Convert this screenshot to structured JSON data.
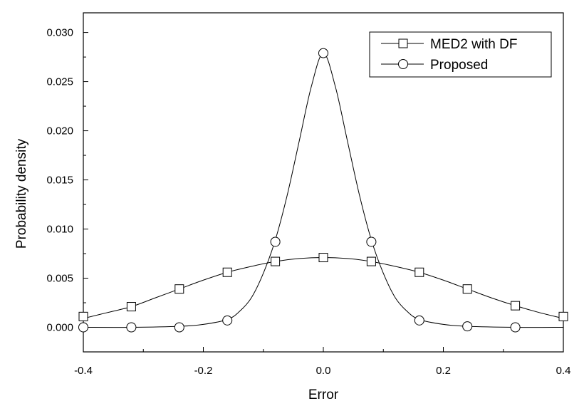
{
  "chart_data": {
    "type": "line",
    "title": "",
    "xlabel": "Error",
    "ylabel": "Probability density",
    "xlim": [
      -0.4,
      0.4
    ],
    "ylim": [
      -0.0025,
      0.032
    ],
    "x_ticks": [
      -0.4,
      -0.2,
      0.0,
      0.2,
      0.4
    ],
    "x_tick_labels": [
      "-0.4",
      "-0.2",
      "0.0",
      "0.2",
      "0.4"
    ],
    "y_ticks": [
      0.0,
      0.005,
      0.01,
      0.015,
      0.02,
      0.025,
      0.03
    ],
    "y_tick_labels": [
      "0.000",
      "0.005",
      "0.010",
      "0.015",
      "0.020",
      "0.025",
      "0.030"
    ],
    "grid": false,
    "legend_position": "top-right",
    "series": [
      {
        "name": "MED2 with DF",
        "marker": "square",
        "color": "#000000",
        "markers_x": [
          -0.4,
          -0.32,
          -0.24,
          -0.16,
          -0.08,
          0.0,
          0.08,
          0.16,
          0.24,
          0.32,
          0.4
        ],
        "markers_y": [
          0.0011,
          0.0021,
          0.0039,
          0.0056,
          0.0067,
          0.0071,
          0.0067,
          0.0056,
          0.0039,
          0.0022,
          0.0011
        ],
        "curve_x": [
          -0.4,
          -0.36,
          -0.32,
          -0.28,
          -0.24,
          -0.2,
          -0.16,
          -0.12,
          -0.08,
          -0.04,
          0.0,
          0.04,
          0.08,
          0.12,
          0.16,
          0.2,
          0.24,
          0.28,
          0.32,
          0.36,
          0.4
        ],
        "curve_y": [
          0.0009,
          0.0015,
          0.0021,
          0.003,
          0.0039,
          0.0048,
          0.0056,
          0.0062,
          0.0067,
          0.007,
          0.0071,
          0.007,
          0.0067,
          0.0062,
          0.0056,
          0.0048,
          0.0039,
          0.003,
          0.0022,
          0.0015,
          0.0009
        ]
      },
      {
        "name": "Proposed",
        "marker": "circle",
        "color": "#000000",
        "markers_x": [
          -0.4,
          -0.32,
          -0.24,
          -0.16,
          -0.08,
          0.0,
          0.08,
          0.16,
          0.24,
          0.32
        ],
        "markers_y": [
          0.0,
          0.0,
          0.0,
          0.0007,
          0.0087,
          0.0279,
          0.0087,
          0.0007,
          0.0001,
          0.0
        ],
        "curve_x": [
          -0.4,
          -0.32,
          -0.24,
          -0.2,
          -0.16,
          -0.14,
          -0.12,
          -0.1,
          -0.08,
          -0.06,
          -0.04,
          -0.02,
          0.0,
          0.02,
          0.04,
          0.06,
          0.08,
          0.1,
          0.12,
          0.14,
          0.16,
          0.2,
          0.24,
          0.32,
          0.4
        ],
        "curve_y": [
          0.0,
          0.0,
          0.0001,
          0.0003,
          0.0008,
          0.0016,
          0.003,
          0.0055,
          0.0089,
          0.0135,
          0.019,
          0.0245,
          0.0279,
          0.0245,
          0.019,
          0.0135,
          0.0089,
          0.0055,
          0.003,
          0.0016,
          0.0008,
          0.0003,
          0.0001,
          0.0,
          0.0
        ]
      }
    ]
  }
}
